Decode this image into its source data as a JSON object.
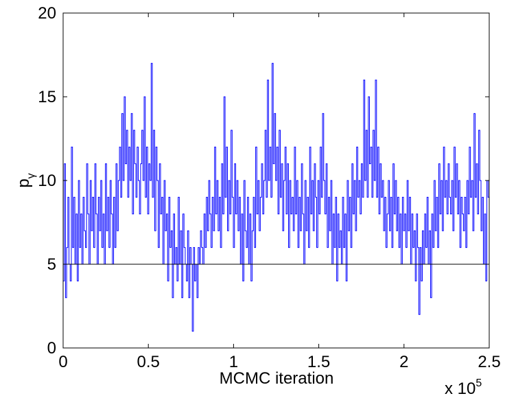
{
  "chart_data": {
    "type": "line",
    "title": "",
    "xlabel": "MCMC iteration",
    "ylabel": "p",
    "ylabel_subscript": "γ",
    "x_multiplier_label": "x 10",
    "x_multiplier_exponent": "5",
    "xlim": [
      0,
      2.5
    ],
    "ylim": [
      0,
      20
    ],
    "xticks": [
      0,
      0.5,
      1,
      1.5,
      2,
      2.5
    ],
    "xtick_labels": [
      "0",
      "0.5",
      "1",
      "1.5",
      "2",
      "2.5"
    ],
    "yticks": [
      0,
      5,
      10,
      15,
      20
    ],
    "ytick_labels": [
      "0",
      "5",
      "10",
      "15",
      "20"
    ],
    "grid": false,
    "series": [
      {
        "color": "#0000ff",
        "style": "step",
        "x_range": [
          0,
          2.5
        ],
        "values": [
          4,
          11,
          3,
          6,
          9,
          5,
          4,
          12,
          6,
          9,
          5,
          8,
          4,
          10,
          6,
          8,
          5,
          9,
          7,
          6,
          11,
          8,
          5,
          10,
          7,
          9,
          6,
          11,
          8,
          5,
          9,
          7,
          10,
          6,
          8,
          5,
          11,
          7,
          9,
          6,
          10,
          8,
          5,
          9,
          6,
          11,
          7,
          10,
          12,
          9,
          14,
          10,
          15,
          11,
          13,
          9,
          12,
          10,
          14,
          8,
          13,
          11,
          9,
          12,
          10,
          8,
          11,
          13,
          10,
          15,
          9,
          12,
          8,
          11,
          10,
          17,
          9,
          13,
          7,
          12,
          10,
          6,
          11,
          8,
          9,
          5,
          10,
          7,
          8,
          4,
          9,
          6,
          7,
          3,
          8,
          5,
          6,
          4,
          9,
          5,
          7,
          3,
          8,
          6,
          5,
          4,
          7,
          3,
          6,
          5,
          1,
          6,
          4,
          5,
          3,
          6,
          5,
          7,
          6,
          5,
          8,
          6,
          9,
          7,
          10,
          8,
          6,
          9,
          7,
          12,
          8,
          10,
          7,
          9,
          6,
          11,
          8,
          15,
          9,
          12,
          7,
          10,
          8,
          13,
          9,
          6,
          11,
          8,
          10,
          7,
          9,
          5,
          8,
          4,
          10,
          7,
          6,
          9,
          5,
          8,
          4,
          7,
          9,
          6,
          12,
          8,
          10,
          7,
          9,
          11,
          8,
          10,
          13,
          9,
          16,
          10,
          12,
          9,
          17,
          11,
          14,
          10,
          12,
          8,
          13,
          9,
          11,
          7,
          10,
          12,
          8,
          11,
          6,
          10,
          8,
          9,
          7,
          12,
          8,
          10,
          6,
          9,
          7,
          11,
          8,
          5,
          10,
          7,
          9,
          6,
          12,
          8,
          10,
          7,
          11,
          9,
          6,
          10,
          8,
          12,
          9,
          14,
          10,
          8,
          11,
          6,
          9,
          7,
          10,
          5,
          8,
          6,
          9,
          4,
          8,
          6,
          7,
          5,
          9,
          6,
          8,
          4,
          10,
          7,
          9,
          6,
          11,
          8,
          10,
          7,
          12,
          9,
          10,
          8,
          11,
          9,
          16,
          10,
          13,
          9,
          15,
          11,
          12,
          9,
          13,
          10,
          16,
          9,
          12,
          8,
          11,
          9,
          10,
          7,
          9,
          6,
          8,
          10,
          7,
          9,
          6,
          11,
          8,
          10,
          7,
          9,
          6,
          8,
          5,
          9,
          7,
          8,
          6,
          10,
          7,
          9,
          5,
          8,
          6,
          7,
          4,
          8,
          6,
          2,
          6,
          4,
          7,
          5,
          8,
          6,
          9,
          5,
          7,
          3,
          8,
          6,
          10,
          7,
          9,
          6,
          11,
          8,
          10,
          7,
          12,
          9,
          10,
          8,
          11,
          9,
          8,
          10,
          7,
          12,
          9,
          11,
          8,
          10,
          6,
          9,
          8,
          7,
          9,
          6,
          10,
          8,
          12,
          9,
          10,
          7,
          14,
          9,
          11,
          8,
          13,
          10,
          7,
          9,
          5,
          8,
          4,
          10,
          9
        ]
      },
      {
        "color": "#000000",
        "style": "reference",
        "x": [
          0,
          2.5
        ],
        "values": [
          5,
          5
        ]
      }
    ]
  }
}
